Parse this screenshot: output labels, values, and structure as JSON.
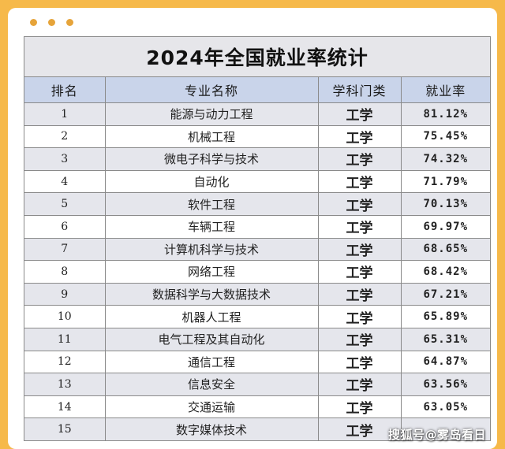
{
  "title": "2024年全国就业率统计",
  "columns": {
    "rank": "排名",
    "major": "专业名称",
    "category": "学科门类",
    "rate": "就业率"
  },
  "rows": [
    {
      "rank": "1",
      "major": "能源与动力工程",
      "category": "工学",
      "rate": "81.12%"
    },
    {
      "rank": "2",
      "major": "机械工程",
      "category": "工学",
      "rate": "75.45%"
    },
    {
      "rank": "3",
      "major": "微电子科学与技术",
      "category": "工学",
      "rate": "74.32%"
    },
    {
      "rank": "4",
      "major": "自动化",
      "category": "工学",
      "rate": "71.79%"
    },
    {
      "rank": "5",
      "major": "软件工程",
      "category": "工学",
      "rate": "70.13%"
    },
    {
      "rank": "6",
      "major": "车辆工程",
      "category": "工学",
      "rate": "69.97%"
    },
    {
      "rank": "7",
      "major": "计算机科学与技术",
      "category": "工学",
      "rate": "68.65%"
    },
    {
      "rank": "8",
      "major": "网络工程",
      "category": "工学",
      "rate": "68.42%"
    },
    {
      "rank": "9",
      "major": "数据科学与大数据技术",
      "category": "工学",
      "rate": "67.21%"
    },
    {
      "rank": "10",
      "major": "机器人工程",
      "category": "工学",
      "rate": "65.89%"
    },
    {
      "rank": "11",
      "major": "电气工程及其自动化",
      "category": "工学",
      "rate": "65.31%"
    },
    {
      "rank": "12",
      "major": "通信工程",
      "category": "工学",
      "rate": "64.87%"
    },
    {
      "rank": "13",
      "major": "信息安全",
      "category": "工学",
      "rate": "63.56%"
    },
    {
      "rank": "14",
      "major": "交通运输",
      "category": "工学",
      "rate": "63.05%"
    },
    {
      "rank": "15",
      "major": "数字媒体技术",
      "category": "工学",
      "rate": ""
    }
  ],
  "watermark": "搜狐号@雾岛看日",
  "colors": {
    "background": "#f6b94a",
    "header_row": "#c9d4ea",
    "title_bar": "#e6e6ea",
    "striped_row": "#e5e6ec"
  }
}
